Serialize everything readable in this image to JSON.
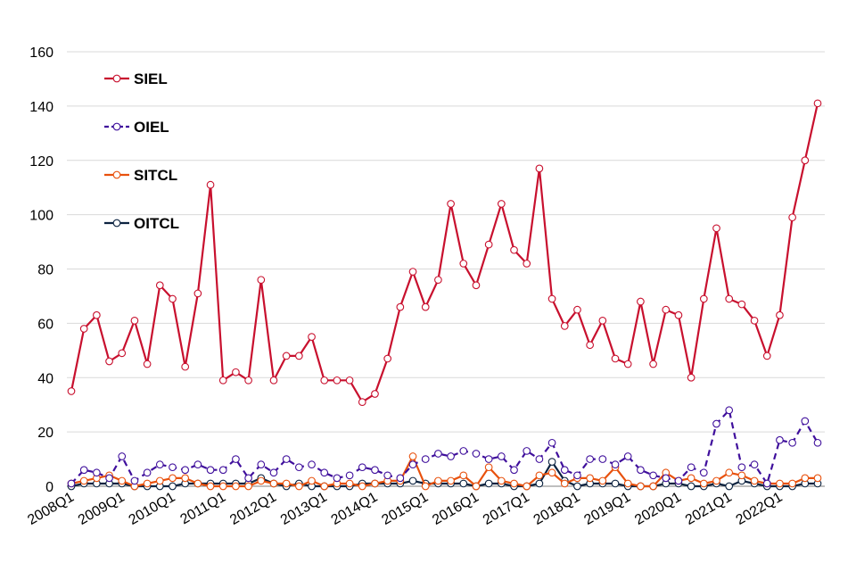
{
  "chart_data": {
    "type": "line",
    "title": "",
    "xlabel": "",
    "ylabel": "",
    "ylim": [
      0,
      160
    ],
    "yticks": [
      "0",
      "20",
      "40",
      "60",
      "80",
      "100",
      "120",
      "140",
      "160"
    ],
    "xticks": [
      "2008Q1",
      "2009Q1",
      "2010Q1",
      "2011Q1",
      "2012Q1",
      "2013Q1",
      "2014Q1",
      "2015Q1",
      "2016Q1",
      "2017Q1",
      "2018Q1",
      "2019Q1",
      "2020Q1",
      "2021Q1",
      "2022Q1"
    ],
    "grid": true,
    "legend_position": "top-left",
    "series": [
      {
        "name": "SIEL",
        "color": "#c8102e",
        "dash": "solid",
        "values": [
          35,
          58,
          63,
          46,
          49,
          61,
          45,
          74,
          69,
          44,
          71,
          111,
          39,
          42,
          39,
          76,
          39,
          48,
          48,
          55,
          39,
          39,
          39,
          31,
          34,
          47,
          66,
          79,
          66,
          76,
          104,
          82,
          74,
          89,
          104,
          87,
          82,
          117,
          69,
          59,
          65,
          52,
          61,
          47,
          45,
          68,
          45,
          65,
          63,
          40,
          69,
          95,
          69,
          67,
          61,
          48,
          63,
          99,
          120,
          141
        ]
      },
      {
        "name": "OIEL",
        "color": "#3f0f9c",
        "dash": "dashed",
        "values": [
          1,
          6,
          5,
          3,
          11,
          2,
          5,
          8,
          7,
          6,
          8,
          6,
          6,
          10,
          3,
          8,
          5,
          10,
          7,
          8,
          5,
          3,
          4,
          7,
          6,
          4,
          3,
          8,
          10,
          12,
          11,
          13,
          12,
          10,
          11,
          6,
          13,
          10,
          16,
          6,
          4,
          10,
          10,
          8,
          11,
          6,
          4,
          3,
          2,
          7,
          5,
          23,
          28,
          7,
          8,
          1,
          17,
          16,
          24,
          16
        ]
      },
      {
        "name": "SITCL",
        "color": "#e8510d",
        "dash": "solid",
        "values": [
          1,
          2,
          3,
          4,
          2,
          0,
          1,
          2,
          3,
          3,
          1,
          0,
          0,
          0,
          0,
          2,
          1,
          1,
          0,
          2,
          0,
          1,
          1,
          0,
          1,
          2,
          2,
          11,
          0,
          2,
          2,
          4,
          0,
          7,
          2,
          1,
          0,
          4,
          5,
          1,
          3,
          3,
          2,
          7,
          1,
          0,
          0,
          5,
          2,
          3,
          1,
          2,
          5,
          4,
          2,
          1,
          1,
          1,
          3,
          3
        ]
      },
      {
        "name": "OITCL",
        "color": "#0c2340",
        "dash": "solid",
        "values": [
          0,
          1,
          1,
          1,
          1,
          0,
          0,
          0,
          0,
          1,
          1,
          1,
          1,
          1,
          1,
          3,
          1,
          0,
          1,
          0,
          0,
          0,
          0,
          1,
          1,
          1,
          1,
          2,
          1,
          1,
          1,
          1,
          0,
          1,
          1,
          0,
          0,
          1,
          9,
          2,
          0,
          1,
          1,
          1,
          0,
          0,
          0,
          1,
          1,
          0,
          0,
          1,
          0,
          2,
          1,
          0,
          0,
          0,
          1,
          1
        ]
      }
    ]
  }
}
